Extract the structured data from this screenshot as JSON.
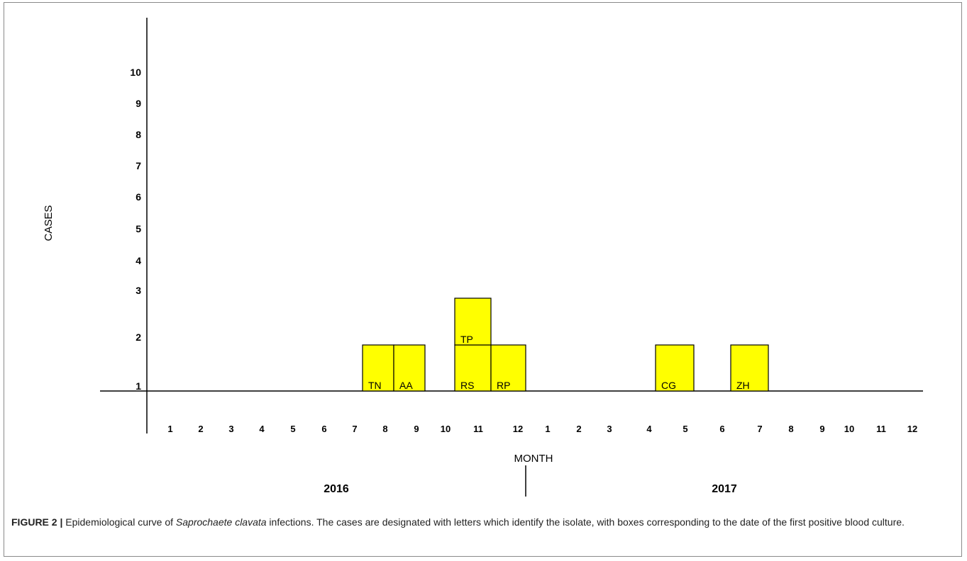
{
  "chart_data": {
    "type": "bar",
    "xlabel": "MONTH",
    "ylabel": "CASES",
    "y_ticks": [
      "1",
      "2",
      "3",
      "4",
      "5",
      "6",
      "7",
      "8",
      "9",
      "10"
    ],
    "months": [
      "1",
      "2",
      "3",
      "4",
      "5",
      "6",
      "7",
      "8",
      "9",
      "10",
      "11",
      "12",
      "1",
      "2",
      "3",
      "4",
      "5",
      "6",
      "7",
      "8",
      "9",
      "10",
      "11",
      "12"
    ],
    "years": [
      "2016",
      "2017"
    ],
    "cases": [
      {
        "label": "TN",
        "year": "2016",
        "month": 8,
        "stack": 1
      },
      {
        "label": "AA",
        "year": "2016",
        "month": 9,
        "stack": 1
      },
      {
        "label": "RS",
        "year": "2016",
        "month": 11,
        "stack": 1
      },
      {
        "label": "TP",
        "year": "2016",
        "month": 11,
        "stack": 2
      },
      {
        "label": "RP",
        "year": "2016",
        "month": 12,
        "stack": 1
      },
      {
        "label": "CG",
        "year": "2017",
        "month": 5,
        "stack": 1
      },
      {
        "label": "ZH",
        "year": "2017",
        "month": 7,
        "stack": 1
      }
    ],
    "box_color": "#ffff00"
  },
  "caption": {
    "label": "FIGURE 2 |",
    "text_before": " Epidemiological curve of ",
    "species": "Saprochaete clavata",
    "text_after": " infections. The cases are designated with letters which identify the isolate, with boxes corresponding to the date of the first positive blood culture."
  }
}
